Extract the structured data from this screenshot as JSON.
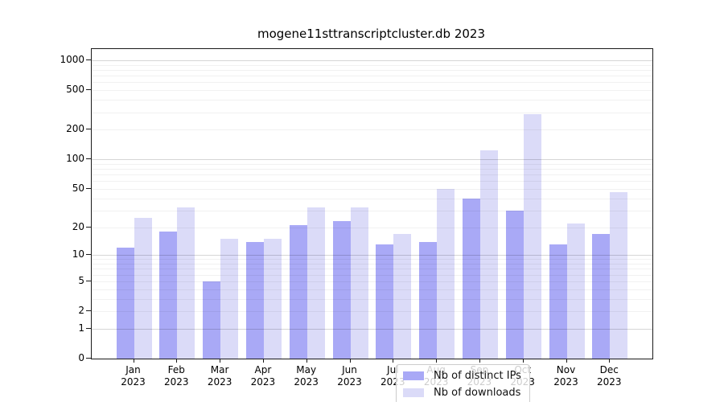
{
  "title": "mogene11sttranscriptcluster.db 2023",
  "chart_data": {
    "type": "bar",
    "title": "mogene11sttranscriptcluster.db 2023",
    "categories": [
      "Jan 2023",
      "Feb 2023",
      "Mar 2023",
      "Apr 2023",
      "May 2023",
      "Jun 2023",
      "Jul 2023",
      "Aug 2023",
      "Sep 2023",
      "Oct 2023",
      "Nov 2023",
      "Dec 2023"
    ],
    "series": [
      {
        "name": "Nb of distinct IPs",
        "color": "#a9a9f6",
        "values": [
          12,
          18,
          5,
          14,
          21,
          23,
          13,
          14,
          40,
          30,
          13,
          17
        ]
      },
      {
        "name": "Nb of downloads",
        "color": "#dbdbf8",
        "values": [
          25,
          32,
          15,
          15,
          32,
          32,
          17,
          50,
          123,
          285,
          22,
          46
        ]
      }
    ],
    "y_ticks": [
      0,
      1,
      2,
      5,
      10,
      20,
      50,
      100,
      200,
      500,
      1000
    ],
    "xlabel": "",
    "ylabel": "",
    "ylim": [
      0,
      1300
    ],
    "axis_scale": "log10(value+1)",
    "grid": "on",
    "legend_position": "lower center"
  },
  "colors": {
    "distinct_ips_bar": "#a9a9f6",
    "downloads_bar": "#dbdbf8",
    "grid_major": "#d6d6d6",
    "grid_minor": "#f1f1f1",
    "text": "#000000"
  }
}
